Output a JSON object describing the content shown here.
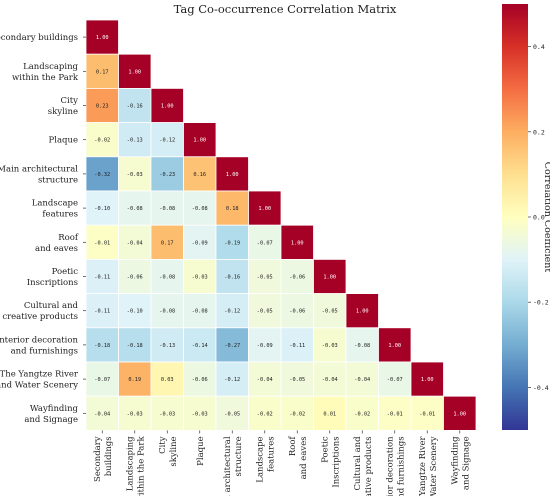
{
  "chart_data": {
    "type": "heatmap",
    "title": "Tag Co-occurrence Correlation Matrix",
    "colorbar_label": "Correlation Coefficient",
    "colorbar_ticks": [
      "0.4",
      "0.2",
      "0.0",
      "-0.2",
      "-0.4"
    ],
    "colorbar_tick_values": [
      0.4,
      0.2,
      0.0,
      -0.2,
      -0.4
    ],
    "vmin": -0.5,
    "vmax": 0.5,
    "colormap": [
      "#313695",
      "#4575b4",
      "#74add1",
      "#abd9e9",
      "#e0f3f8",
      "#ffffbf",
      "#fee090",
      "#fdae61",
      "#f46d43",
      "#d73027",
      "#a50026"
    ],
    "mask": "upper triangle hidden",
    "row_labels": [
      [
        "Secondary buildings"
      ],
      [
        "Landscaping",
        "within the Park"
      ],
      [
        "City",
        "skyline"
      ],
      [
        "Plaque"
      ],
      [
        "Main architectural",
        "structure"
      ],
      [
        "Landscape",
        "features"
      ],
      [
        "Roof",
        "and eaves"
      ],
      [
        "Poetic",
        "Inscriptions"
      ],
      [
        "Cultural and",
        "creative products"
      ],
      [
        "Interior decoration",
        "and furnishings"
      ],
      [
        "The Yangtze River",
        "and Water Scenery"
      ],
      [
        "Wayfinding",
        "and Signage"
      ]
    ],
    "col_labels": [
      [
        "Secondary",
        "buildings"
      ],
      [
        "Landscaping",
        "within the Park"
      ],
      [
        "City",
        "skyline"
      ],
      [
        "Plaque"
      ],
      [
        "Main architectural",
        "structure"
      ],
      [
        "Landscape",
        "features"
      ],
      [
        "Roof",
        "and eaves"
      ],
      [
        "Poetic",
        "Inscriptions"
      ],
      [
        "Cultural and",
        "creative products"
      ],
      [
        "Interior decoration",
        "and furnishings"
      ],
      [
        "The Yangtze River",
        "and Water Scenery"
      ],
      [
        "Wayfinding",
        "and Signage"
      ]
    ],
    "values": [
      [
        1.0
      ],
      [
        0.17,
        1.0
      ],
      [
        0.23,
        -0.16,
        1.0
      ],
      [
        -0.02,
        -0.13,
        -0.12,
        1.0
      ],
      [
        -0.32,
        -0.03,
        -0.23,
        0.16,
        1.0
      ],
      [
        -0.1,
        -0.08,
        -0.08,
        -0.08,
        0.18,
        1.0
      ],
      [
        -0.01,
        -0.04,
        0.17,
        -0.09,
        -0.19,
        -0.07,
        1.0
      ],
      [
        -0.11,
        -0.06,
        -0.08,
        -0.03,
        -0.16,
        -0.05,
        -0.06,
        1.0
      ],
      [
        -0.11,
        -0.1,
        -0.08,
        -0.08,
        -0.12,
        -0.05,
        -0.06,
        -0.05,
        1.0
      ],
      [
        -0.18,
        -0.18,
        -0.13,
        -0.14,
        -0.27,
        -0.09,
        -0.11,
        -0.03,
        -0.08,
        1.0
      ],
      [
        -0.07,
        0.19,
        0.03,
        -0.06,
        -0.12,
        -0.04,
        -0.05,
        -0.04,
        -0.04,
        -0.07,
        1.0
      ],
      [
        -0.04,
        -0.03,
        -0.03,
        -0.03,
        -0.05,
        -0.02,
        -0.02,
        0.01,
        -0.02,
        -0.01,
        -0.01,
        1.0
      ]
    ]
  }
}
